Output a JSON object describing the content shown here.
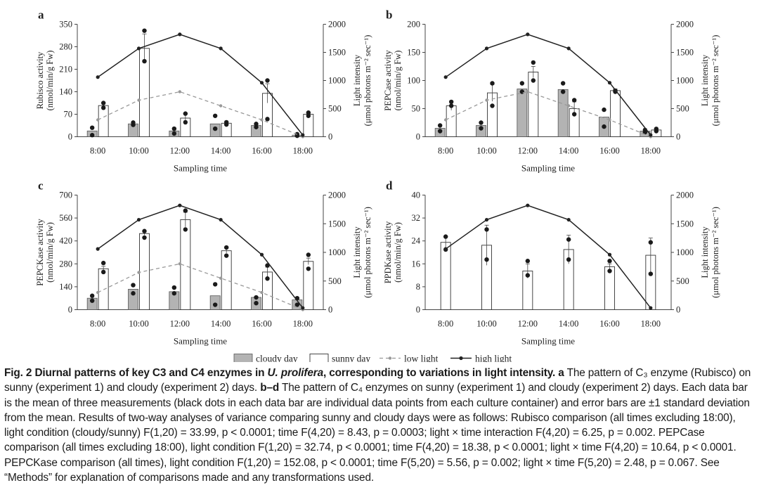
{
  "figure": {
    "x_axis_title": "Sampling time",
    "categories": [
      "8:00",
      "10:00",
      "12:00",
      "14:00",
      "16:00",
      "18:00"
    ],
    "right_axis_label_line1": "Light intensity",
    "right_axis_label_line2": "(μmol photons m⁻² sec⁻¹)",
    "light_ylim": [
      0,
      2000
    ],
    "light_ticks": [
      "0",
      "500",
      "1000",
      "1500",
      "2000"
    ],
    "legend": {
      "cloudy": "cloudy day",
      "sunny": "sunny day",
      "low": "low light",
      "high": "high light"
    },
    "colors": {
      "cloudy": "#b3b3b3",
      "sunny": "#ffffff",
      "low": "#999999",
      "high": "#222222"
    }
  },
  "chart_data": [
    {
      "panel": "a",
      "type": "bar",
      "ylabel_line1": "Rubisco activity",
      "ylabel_line2": "(nmol/min/g Fw)",
      "ylim": [
        0,
        350
      ],
      "yticks": [
        "0",
        "70",
        "140",
        "210",
        "280",
        "350"
      ],
      "cloudy": [
        18,
        40,
        18,
        40,
        35,
        5
      ],
      "sunny": [
        97,
        275,
        58,
        42,
        135,
        70
      ],
      "sunny_err": [
        8,
        45,
        15,
        5,
        30,
        5
      ],
      "cloudy_points": [
        [
          5,
          28
        ],
        [
          37,
          44
        ],
        [
          10,
          25
        ],
        [
          25,
          65
        ],
        [
          30,
          40
        ],
        [
          3,
          8
        ]
      ],
      "sunny_points": [
        [
          90,
          105
        ],
        [
          235,
          330
        ],
        [
          45,
          72
        ],
        [
          38,
          45
        ],
        [
          55,
          175
        ],
        [
          65,
          75
        ]
      ],
      "light_low": [
        300,
        650,
        800,
        550,
        300,
        0
      ],
      "light_high": [
        1060,
        1570,
        1820,
        1570,
        960,
        30
      ]
    },
    {
      "panel": "b",
      "type": "bar",
      "ylabel_line1": "PEPCase activity",
      "ylabel_line2": "(nmol/min/g Fw)",
      "ylim": [
        0,
        200
      ],
      "yticks": [
        "0",
        "50",
        "100",
        "150",
        "200"
      ],
      "cloudy": [
        15,
        20,
        85,
        84,
        35,
        10
      ],
      "sunny": [
        55,
        78,
        115,
        50,
        82,
        12
      ],
      "sunny_err": [
        8,
        15,
        10,
        12,
        3,
        2
      ],
      "cloudy_points": [
        [
          10,
          20
        ],
        [
          15,
          25
        ],
        [
          80,
          95
        ],
        [
          80,
          95
        ],
        [
          18,
          48
        ],
        [
          8,
          12
        ]
      ],
      "sunny_points": [
        [
          55,
          62
        ],
        [
          55,
          95
        ],
        [
          100,
          132
        ],
        [
          40,
          65
        ],
        [
          80,
          82
        ],
        [
          10,
          14
        ]
      ],
      "light_low": [
        300,
        650,
        800,
        550,
        300,
        0
      ],
      "light_high": [
        1060,
        1570,
        1820,
        1570,
        960,
        30
      ]
    },
    {
      "panel": "c",
      "type": "bar",
      "ylabel_line1": "PEPCKase activity",
      "ylabel_line2": "(nmol/min/g Fw)",
      "ylim": [
        0,
        700
      ],
      "yticks": [
        "0",
        "140",
        "280",
        "420",
        "560",
        "700"
      ],
      "cloudy": [
        70,
        125,
        110,
        85,
        75,
        60
      ],
      "sunny": [
        250,
        465,
        550,
        360,
        230,
        295
      ],
      "sunny_err": [
        15,
        10,
        45,
        15,
        30,
        20
      ],
      "cloudy_points": [
        [
          55,
          85
        ],
        [
          100,
          150
        ],
        [
          100,
          135
        ],
        [
          30,
          155
        ],
        [
          40,
          75
        ],
        [
          30,
          70
        ]
      ],
      "sunny_points": [
        [
          230,
          285
        ],
        [
          440,
          480
        ],
        [
          490,
          605
        ],
        [
          330,
          380
        ],
        [
          190,
          270
        ],
        [
          250,
          335
        ]
      ],
      "light_low": [
        300,
        650,
        800,
        550,
        300,
        0
      ],
      "light_high": [
        1060,
        1570,
        1820,
        1570,
        960,
        30
      ]
    },
    {
      "panel": "d",
      "type": "bar",
      "ylabel_line1": "PPDKase activity",
      "ylabel_line2": "(nmol/min/g Fw)",
      "ylim": [
        0,
        40
      ],
      "yticks": [
        "0",
        "8",
        "16",
        "24",
        "32",
        "40"
      ],
      "cloudy": [
        null,
        null,
        null,
        null,
        null,
        null
      ],
      "sunny": [
        23.5,
        22.5,
        13.5,
        21,
        15,
        19
      ],
      "sunny_err": [
        2,
        7,
        2.5,
        5,
        1,
        6
      ],
      "cloudy_points": [],
      "sunny_points": [
        [
          21,
          25.5
        ],
        [
          17.5,
          28
        ],
        [
          12,
          17
        ],
        [
          17.5,
          24.5
        ],
        [
          13.5,
          17
        ],
        [
          12.5,
          23.5
        ]
      ],
      "light_low": [],
      "light_high": [
        1060,
        1570,
        1820,
        1570,
        960,
        30
      ]
    }
  ],
  "caption": {
    "fig_label": "Fig. 2",
    "title_part1": "Diurnal patterns of key C3 and C4 enzymes in",
    "title_species": "U. prolifera",
    "title_part2": ", corresponding to variations in light intensity.",
    "label_a": "a",
    "text_a": "The pattern of C₃ enzyme (Rubisco) on sunny (experiment 1) and cloudy (experiment 2) days.",
    "label_bd": "b–d",
    "text_bd": "The pattern of C₄ enzymes on sunny (experiment 1) and cloudy (experiment 2) days. Each data bar is the mean of three measurements (black dots in each data bar are individual data points from each culture container) and error bars are ±1 standard deviation from the mean. Results of two-way analyses of variance comparing sunny and cloudy days were as follows: Rubisco comparison (all times excluding 18:00), light condition (cloudy/sunny) F(1,20) = 33.99, p < 0.0001; time F(4,20) = 8.43, p = 0.0003; light × time interaction F(4,20) = 6.25, p = 0.002. PEPCase comparison (all times excluding 18:00), light condition F(1,20) = 32.74, p < 0.0001; time F(4,20) = 18.38, p < 0.0001; light × time F(4,20) = 10.64, p < 0.0001. PEPCKase comparison (all times), light condition F(1,20) = 152.08, p < 0.0001; time F(5,20) = 5.56, p = 0.002; light × time F(5,20) = 2.48, p = 0.067. See “Methods” for explanation of comparisons made and any transformations used."
  }
}
